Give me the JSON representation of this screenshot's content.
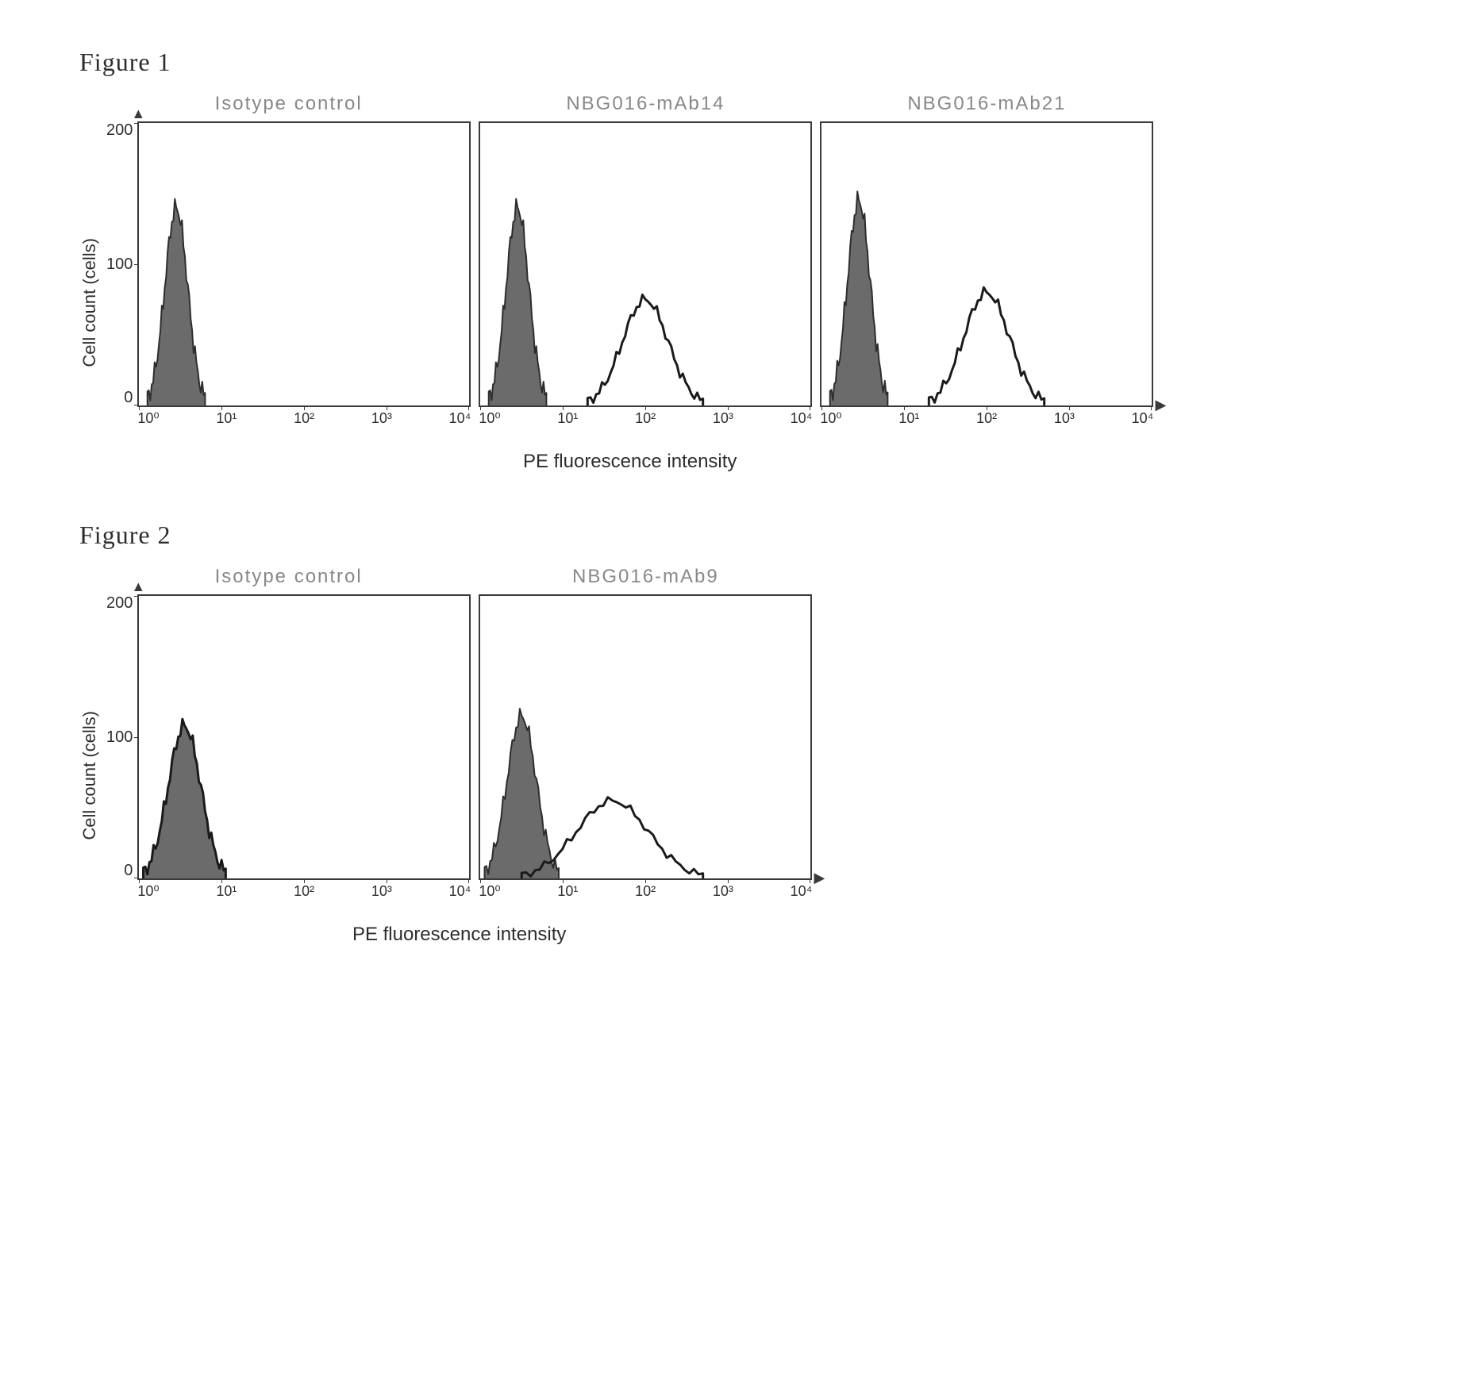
{
  "figure1": {
    "title": "Figure 1",
    "y_axis_label": "Cell count (cells)",
    "x_axis_label": "PE fluorescence intensity",
    "y_ticks": [
      "200",
      "100",
      "0"
    ],
    "x_ticks": [
      "10⁰",
      "10¹",
      "10²",
      "10³",
      "10⁴"
    ],
    "ylim": [
      0,
      200
    ],
    "xlim_log": [
      0,
      4
    ],
    "panels": [
      {
        "title": "Isotype control",
        "type": "histogram",
        "show_ylabels": true,
        "peaks": [
          {
            "filled": true,
            "fill_color": "#6b6b6b",
            "stroke_color": "#2d2d2d",
            "stroke_width": 2,
            "center_log": 0.45,
            "height": 140,
            "width_log": 0.35
          }
        ]
      },
      {
        "title": "NBG016-mAb14",
        "type": "histogram",
        "show_ylabels": false,
        "peaks": [
          {
            "filled": true,
            "fill_color": "#6b6b6b",
            "stroke_color": "#2d2d2d",
            "stroke_width": 2,
            "center_log": 0.45,
            "height": 140,
            "width_log": 0.35
          },
          {
            "filled": false,
            "fill_color": "none",
            "stroke_color": "#1a1a1a",
            "stroke_width": 3,
            "center_log": 2.0,
            "height": 75,
            "width_log": 0.7
          }
        ]
      },
      {
        "title": "NBG016-mAb21",
        "type": "histogram",
        "show_ylabels": false,
        "peaks": [
          {
            "filled": true,
            "fill_color": "#6b6b6b",
            "stroke_color": "#2d2d2d",
            "stroke_width": 2,
            "center_log": 0.45,
            "height": 145,
            "width_log": 0.35
          },
          {
            "filled": false,
            "fill_color": "none",
            "stroke_color": "#1a1a1a",
            "stroke_width": 3,
            "center_log": 2.0,
            "height": 80,
            "width_log": 0.7
          }
        ]
      }
    ],
    "background_color": "#ffffff",
    "border_color": "#3a3a3a",
    "axis_font_size": 20,
    "label_font_size": 22,
    "title_font_color": "#888888"
  },
  "figure2": {
    "title": "Figure 2",
    "y_axis_label": "Cell count (cells)",
    "x_axis_label": "PE fluorescence intensity",
    "y_ticks": [
      "200",
      "100",
      "0"
    ],
    "x_ticks": [
      "10⁰",
      "10¹",
      "10²",
      "10³",
      "10⁴"
    ],
    "ylim": [
      0,
      200
    ],
    "xlim_log": [
      0,
      4
    ],
    "panels": [
      {
        "title": "Isotype control",
        "type": "histogram",
        "show_ylabels": true,
        "peaks": [
          {
            "filled": true,
            "fill_color": "#6b6b6b",
            "stroke_color": "#1a1a1a",
            "stroke_width": 3,
            "center_log": 0.55,
            "height": 108,
            "width_log": 0.5
          }
        ]
      },
      {
        "title": "NBG016-mAb9",
        "type": "histogram",
        "show_ylabels": false,
        "peaks": [
          {
            "filled": true,
            "fill_color": "#6b6b6b",
            "stroke_color": "#2d2d2d",
            "stroke_width": 2,
            "center_log": 0.5,
            "height": 115,
            "width_log": 0.45
          },
          {
            "filled": false,
            "fill_color": "none",
            "stroke_color": "#1a1a1a",
            "stroke_width": 3,
            "center_log": 1.6,
            "height": 55,
            "width_log": 1.1
          }
        ]
      }
    ],
    "background_color": "#ffffff",
    "border_color": "#3a3a3a",
    "axis_font_size": 20,
    "label_font_size": 22,
    "title_font_color": "#888888"
  }
}
